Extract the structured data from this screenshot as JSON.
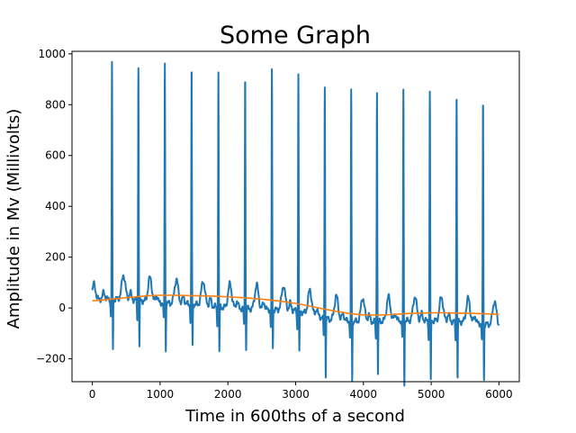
{
  "chart_data": {
    "type": "line",
    "title": "Some Graph",
    "xlabel": "Time in 600ths of a second",
    "ylabel": "Amplitude in Mv (Millivolts)",
    "xlim": [
      -300,
      6300
    ],
    "ylim": [
      -290,
      1010
    ],
    "xticks": [
      0,
      1000,
      2000,
      3000,
      4000,
      5000,
      6000
    ],
    "yticks": [
      -200,
      0,
      200,
      400,
      600,
      800,
      1000
    ],
    "ytick_labels": [
      "−200",
      "0",
      "200",
      "400",
      "600",
      "800",
      "1000"
    ],
    "grid": false,
    "legend": "none",
    "series": [
      {
        "color": "#1f77b4",
        "r_peaks": [
          {
            "x": 290,
            "y": 940,
            "s": -185
          },
          {
            "x": 680,
            "y": 928,
            "s": -165
          },
          {
            "x": 1070,
            "y": 952,
            "s": -170
          },
          {
            "x": 1465,
            "y": 938,
            "s": -155
          },
          {
            "x": 1860,
            "y": 926,
            "s": -160
          },
          {
            "x": 2255,
            "y": 924,
            "s": -150
          },
          {
            "x": 2650,
            "y": 938,
            "s": -130
          },
          {
            "x": 3040,
            "y": 934,
            "s": -150
          },
          {
            "x": 3430,
            "y": 898,
            "s": -205
          },
          {
            "x": 3820,
            "y": 895,
            "s": -225
          },
          {
            "x": 4200,
            "y": 893,
            "s": -195
          },
          {
            "x": 4590,
            "y": 890,
            "s": -230
          },
          {
            "x": 4980,
            "y": 888,
            "s": -225
          },
          {
            "x": 5375,
            "y": 885,
            "s": -205
          },
          {
            "x": 5765,
            "y": 866,
            "s": -210
          }
        ],
        "baseline": [
          [
            0,
            35
          ],
          [
            500,
            35
          ],
          [
            1000,
            20
          ],
          [
            1500,
            15
          ],
          [
            2000,
            0
          ],
          [
            2500,
            -5
          ],
          [
            3000,
            -10
          ],
          [
            3500,
            -45
          ],
          [
            4000,
            -55
          ],
          [
            4500,
            -50
          ],
          [
            5000,
            -50
          ],
          [
            5500,
            -55
          ],
          [
            6000,
            -70
          ]
        ]
      },
      {
        "color": "#ff7f0e",
        "points": [
          [
            0,
            28
          ],
          [
            200,
            33
          ],
          [
            400,
            38
          ],
          [
            600,
            43
          ],
          [
            800,
            48
          ],
          [
            1000,
            50
          ],
          [
            1200,
            50
          ],
          [
            1400,
            49
          ],
          [
            1600,
            48
          ],
          [
            1800,
            46
          ],
          [
            2000,
            44
          ],
          [
            2200,
            41
          ],
          [
            2400,
            37
          ],
          [
            2600,
            32
          ],
          [
            2800,
            26
          ],
          [
            3000,
            18
          ],
          [
            3200,
            8
          ],
          [
            3400,
            -3
          ],
          [
            3600,
            -13
          ],
          [
            3800,
            -22
          ],
          [
            4000,
            -27
          ],
          [
            4200,
            -28
          ],
          [
            4400,
            -26
          ],
          [
            4600,
            -23
          ],
          [
            4800,
            -20
          ],
          [
            5000,
            -19
          ],
          [
            5200,
            -19
          ],
          [
            5400,
            -20
          ],
          [
            5600,
            -21
          ],
          [
            5800,
            -23
          ],
          [
            6000,
            -25
          ]
        ]
      }
    ]
  }
}
